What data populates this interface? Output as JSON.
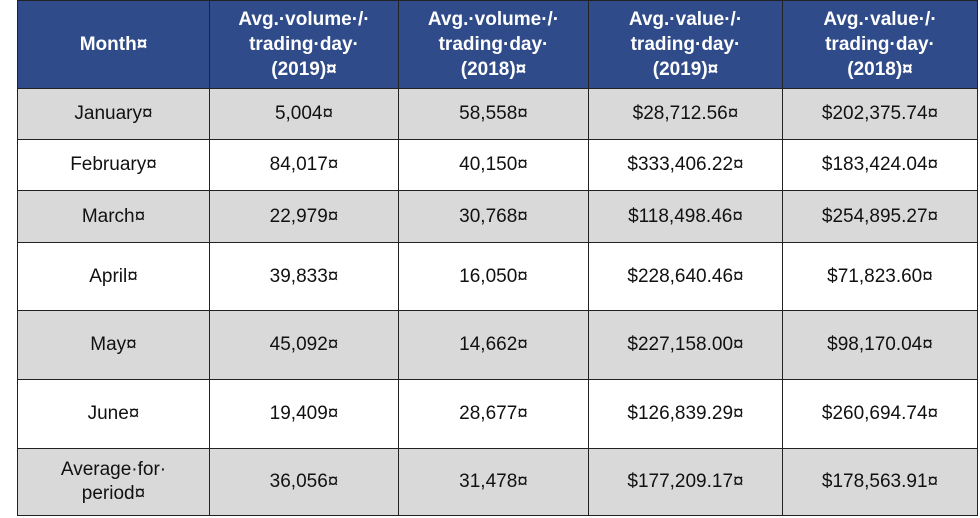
{
  "table": {
    "headers": [
      [
        "Month¤"
      ],
      [
        "Avg.·volume·/·",
        "trading·day·",
        "(2019)¤"
      ],
      [
        "Avg.·volume·/·",
        "trading·day·",
        "(2018)¤"
      ],
      [
        "Avg.·value·/·",
        "trading·day·",
        "(2019)¤"
      ],
      [
        "Avg.·value·/·",
        "trading·day·",
        "(2018)¤"
      ]
    ],
    "rows": [
      {
        "month": [
          "January¤"
        ],
        "vol2019": "5,004¤",
        "vol2018": "58,558¤",
        "val2019": "$28,712.56¤",
        "val2018": "$202,375.74¤"
      },
      {
        "month": [
          "February¤"
        ],
        "vol2019": "84,017¤",
        "vol2018": "40,150¤",
        "val2019": "$333,406.22¤",
        "val2018": "$183,424.04¤"
      },
      {
        "month": [
          "March¤"
        ],
        "vol2019": "22,979¤",
        "vol2018": "30,768¤",
        "val2019": "$118,498.46¤",
        "val2018": "$254,895.27¤"
      },
      {
        "month": [
          "April¤"
        ],
        "vol2019": "39,833¤",
        "vol2018": "16,050¤",
        "val2019": "$228,640.46¤",
        "val2018": "$71,823.60¤"
      },
      {
        "month": [
          "May¤"
        ],
        "vol2019": "45,092¤",
        "vol2018": "14,662¤",
        "val2019": "$227,158.00¤",
        "val2018": "$98,170.04¤"
      },
      {
        "month": [
          "June¤"
        ],
        "vol2019": "19,409¤",
        "vol2018": "28,677¤",
        "val2019": "$126,839.29¤",
        "val2018": "$260,694.74¤"
      },
      {
        "month": [
          "Average·for·",
          "period¤"
        ],
        "vol2019": "36,056¤",
        "vol2018": "31,478¤",
        "val2019": "$177,209.17¤",
        "val2018": "$178,563.91¤"
      }
    ]
  },
  "colors": {
    "header_bg": "#2f4b8a",
    "header_text": "#ffffff",
    "shaded_row": "#d9d9d9",
    "plain_row": "#ffffff",
    "border": "#222222"
  }
}
